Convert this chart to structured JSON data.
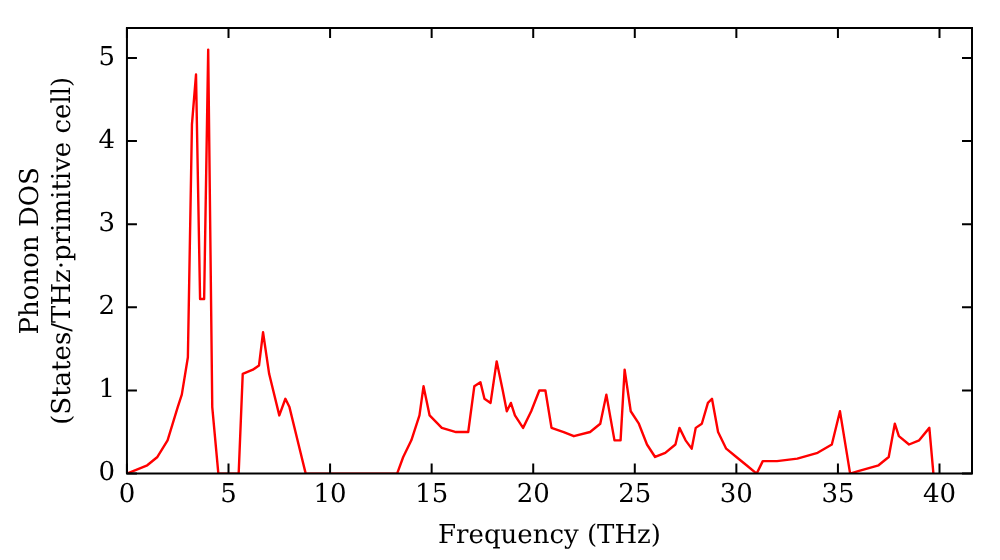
{
  "chart_data": {
    "type": "line",
    "xlabel": "Frequency (THz)",
    "ylabel": "Phonon DOS\n(States/THz·primitive cell)",
    "x": [
      0,
      1,
      1.5,
      2,
      2.5,
      2.7,
      3,
      3.2,
      3.4,
      3.6,
      3.8,
      4.0,
      4.2,
      4.5,
      5.5,
      5.7,
      6.2,
      6.5,
      6.7,
      7,
      7.5,
      7.8,
      8,
      8.5,
      8.8,
      13.3,
      13.6,
      14,
      14.4,
      14.6,
      14.9,
      15.5,
      16.2,
      16.8,
      17.1,
      17.4,
      17.6,
      17.9,
      18.2,
      18.5,
      18.7,
      18.9,
      19.1,
      19.5,
      19.9,
      20.3,
      20.6,
      20.9,
      21.5,
      22,
      22.8,
      23.3,
      23.6,
      24,
      24.3,
      24.5,
      24.8,
      25.2,
      25.6,
      26,
      26.5,
      27,
      27.2,
      27.5,
      27.8,
      28,
      28.3,
      28.6,
      28.8,
      29.1,
      29.5,
      30,
      30.5,
      31,
      31.3,
      32,
      33,
      34,
      34.7,
      35.1,
      35.4,
      35.6,
      36,
      37,
      37.5,
      37.8,
      38,
      38.5,
      39,
      39.5,
      39.7
    ],
    "series": [
      {
        "color": "#ff0000",
        "values": [
          0,
          0.1,
          0.2,
          0.4,
          0.8,
          0.95,
          1.4,
          4.2,
          4.8,
          2.1,
          2.1,
          5.1,
          0.8,
          0,
          0,
          1.2,
          1.25,
          1.3,
          1.7,
          1.2,
          0.7,
          0.9,
          0.8,
          0.3,
          0,
          0,
          0.2,
          0.4,
          0.7,
          1.05,
          0.7,
          0.55,
          0.5,
          0.5,
          1.05,
          1.1,
          0.9,
          0.85,
          1.35,
          1.0,
          0.75,
          0.85,
          0.7,
          0.55,
          0.75,
          1.0,
          1.0,
          0.55,
          0.5,
          0.45,
          0.5,
          0.6,
          0.95,
          0.4,
          0.4,
          1.25,
          0.75,
          0.6,
          0.35,
          0.2,
          0.25,
          0.35,
          0.55,
          0.4,
          0.3,
          0.55,
          0.6,
          0.85,
          0.9,
          0.5,
          0.3,
          0.2,
          0.1,
          0,
          0.15,
          0.15,
          0.18,
          0.25,
          0.35,
          0.75,
          0.3,
          0,
          0.03,
          0.1,
          0.2,
          0.6,
          0.45,
          0.35,
          0.4,
          0.55,
          0
        ]
      }
    ],
    "xlim": [
      0,
      41.6
    ],
    "ylim": [
      0,
      5.36
    ],
    "xticks": [
      0,
      5,
      10,
      15,
      20,
      25,
      30,
      35,
      40
    ],
    "yticks": [
      0,
      1,
      2,
      3,
      4,
      5
    ],
    "marker": "none",
    "line_style": "solid",
    "legend": false,
    "grid": false
  }
}
